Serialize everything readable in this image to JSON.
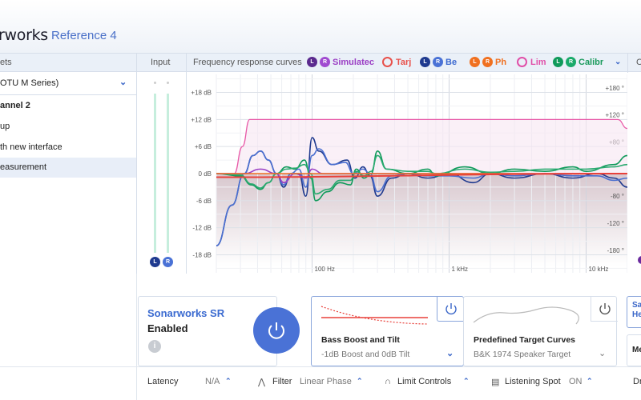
{
  "header": {
    "brand": "rworks",
    "product": "Reference 4"
  },
  "panels": {
    "presets": "ets",
    "input": "Input",
    "frequency": "Frequency response curves",
    "right": "C"
  },
  "sidebar": {
    "device": "OTU M Series)",
    "items": [
      {
        "label": "annel 2",
        "bold": true
      },
      {
        "label": "up"
      },
      {
        "label": "th new interface"
      },
      {
        "label": "easurement",
        "selected": true
      }
    ]
  },
  "input": {
    "left": "L",
    "right": "R"
  },
  "legend": [
    {
      "label": "Simulatec",
      "color": "#9b3fc4",
      "badges": [
        "L",
        "R"
      ],
      "badge_colors": [
        "#5b2a8e",
        "#a04ad0"
      ]
    },
    {
      "label": "Tarj",
      "color": "#e8504a",
      "ring": true
    },
    {
      "label": "Be",
      "color": "#3d6ad0",
      "badges": [
        "L",
        "R"
      ],
      "badge_colors": [
        "#1f3a8f",
        "#4a72d6"
      ]
    },
    {
      "label": "Ph",
      "color": "#f07020",
      "badges": [
        "L",
        "R"
      ],
      "badge_colors": [
        "#f07020",
        "#f07020"
      ]
    },
    {
      "label": "Lim",
      "color": "#e04fa8",
      "ring": true
    },
    {
      "label": "Calibr",
      "color": "#1a9a5c",
      "badges": [
        "L",
        "R"
      ],
      "badge_colors": [
        "#0f9a5a",
        "#1aaa6a"
      ]
    }
  ],
  "chart_data": {
    "type": "line",
    "x_scale": "log",
    "xlim": [
      20,
      20000
    ],
    "ylim": [
      -22,
      22
    ],
    "x_ticks": [
      {
        "v": 100,
        "label": "100 Hz"
      },
      {
        "v": 1000,
        "label": "1 kHz"
      },
      {
        "v": 10000,
        "label": "10 kHz"
      }
    ],
    "y_ticks": [
      {
        "v": 18,
        "label": "+18 dB"
      },
      {
        "v": 12,
        "label": "+12 dB"
      },
      {
        "v": 6,
        "label": "+6 dB"
      },
      {
        "v": 0,
        "label": "0 dB"
      },
      {
        "v": -6,
        "label": "-6 dB"
      },
      {
        "v": -12,
        "label": "-12 dB"
      },
      {
        "v": -18,
        "label": "-18 dB"
      }
    ],
    "phase_ticks": [
      {
        "v": 19,
        "label": "+180 °"
      },
      {
        "v": 13,
        "label": "+120 °"
      },
      {
        "v": 7,
        "label": "+80 °"
      },
      {
        "v": -5,
        "label": "-80 °"
      },
      {
        "v": -11,
        "label": "-120 °"
      },
      {
        "v": -17,
        "label": "-180 °"
      }
    ],
    "series": [
      {
        "id": "limit",
        "color": "#e85aa8",
        "points": [
          [
            20,
            0
          ],
          [
            27,
            0
          ],
          [
            31,
            6
          ],
          [
            35,
            12
          ],
          [
            17000,
            12
          ],
          [
            20000,
            10
          ]
        ]
      },
      {
        "id": "before-L",
        "color": "#1f3a8f",
        "points": [
          [
            20,
            -16
          ],
          [
            26,
            -7
          ],
          [
            32,
            0
          ],
          [
            37,
            4
          ],
          [
            42,
            5
          ],
          [
            48,
            3
          ],
          [
            55,
            0
          ],
          [
            62,
            -3
          ],
          [
            70,
            0
          ],
          [
            80,
            0
          ],
          [
            90,
            -5
          ],
          [
            100,
            8
          ],
          [
            112,
            5
          ],
          [
            140,
            2
          ],
          [
            180,
            3
          ],
          [
            205,
            -1
          ],
          [
            235,
            1.5
          ],
          [
            265,
            -0.5
          ],
          [
            300,
            -5
          ],
          [
            380,
            -1
          ],
          [
            500,
            0
          ],
          [
            700,
            -1
          ],
          [
            1000,
            0
          ],
          [
            1500,
            -2
          ],
          [
            2000,
            0
          ],
          [
            3000,
            -1
          ],
          [
            5000,
            0
          ],
          [
            8000,
            -1
          ],
          [
            12000,
            0
          ],
          [
            16000,
            -1
          ],
          [
            20000,
            -3
          ]
        ]
      },
      {
        "id": "before-R",
        "color": "#4a6fd0",
        "points": [
          [
            20,
            -16
          ],
          [
            26,
            -7
          ],
          [
            32,
            0
          ],
          [
            37,
            4
          ],
          [
            42,
            5
          ],
          [
            48,
            3
          ],
          [
            55,
            0
          ],
          [
            62,
            -2.5
          ],
          [
            70,
            0
          ],
          [
            80,
            1
          ],
          [
            90,
            -3
          ],
          [
            100,
            4
          ],
          [
            112,
            5.5
          ],
          [
            140,
            2
          ],
          [
            175,
            2.5
          ],
          [
            200,
            0
          ],
          [
            235,
            1
          ],
          [
            265,
            0
          ],
          [
            300,
            -4
          ],
          [
            380,
            -0.5
          ],
          [
            500,
            0
          ],
          [
            700,
            -0.5
          ],
          [
            1000,
            -0.5
          ],
          [
            1500,
            -1
          ],
          [
            2000,
            0
          ],
          [
            3000,
            -0.5
          ],
          [
            5000,
            0
          ],
          [
            8000,
            -0.5
          ],
          [
            12000,
            -0.5
          ],
          [
            16000,
            -1.5
          ],
          [
            20000,
            -1
          ]
        ]
      },
      {
        "id": "calibrated-L",
        "color": "#0f9a5a",
        "points": [
          [
            20,
            0
          ],
          [
            30,
            -0.5
          ],
          [
            36,
            -2.5
          ],
          [
            42,
            -3.5
          ],
          [
            48,
            -2
          ],
          [
            55,
            0
          ],
          [
            65,
            1.5
          ],
          [
            75,
            1
          ],
          [
            88,
            3
          ],
          [
            98,
            -1
          ],
          [
            106,
            -6
          ],
          [
            130,
            -4
          ],
          [
            160,
            -2
          ],
          [
            190,
            -2.5
          ],
          [
            210,
            1
          ],
          [
            240,
            -1
          ],
          [
            270,
            0
          ],
          [
            300,
            5
          ],
          [
            350,
            1
          ],
          [
            500,
            0
          ],
          [
            700,
            1
          ],
          [
            800,
            -0.5
          ],
          [
            1300,
            1.5
          ],
          [
            2000,
            0
          ],
          [
            3000,
            1
          ],
          [
            5000,
            0.5
          ],
          [
            8000,
            1.5
          ],
          [
            10000,
            0.5
          ],
          [
            16000,
            2
          ],
          [
            20000,
            4
          ]
        ]
      },
      {
        "id": "calibrated-R",
        "color": "#2aaa70",
        "points": [
          [
            20,
            0
          ],
          [
            30,
            -0.3
          ],
          [
            36,
            -2.3
          ],
          [
            42,
            -3.2
          ],
          [
            48,
            -2
          ],
          [
            55,
            0
          ],
          [
            65,
            1
          ],
          [
            75,
            1.2
          ],
          [
            88,
            2
          ],
          [
            98,
            0
          ],
          [
            106,
            -4.5
          ],
          [
            130,
            -3.5
          ],
          [
            160,
            -1.5
          ],
          [
            190,
            -1.5
          ],
          [
            210,
            0.5
          ],
          [
            240,
            -0.5
          ],
          [
            270,
            0.5
          ],
          [
            300,
            4
          ],
          [
            350,
            1
          ],
          [
            500,
            0.5
          ],
          [
            700,
            0.5
          ],
          [
            800,
            0
          ],
          [
            1300,
            1
          ],
          [
            2000,
            0.3
          ],
          [
            3000,
            0.5
          ],
          [
            5000,
            1
          ],
          [
            8000,
            1
          ],
          [
            10000,
            1
          ],
          [
            16000,
            1.5
          ],
          [
            20000,
            2
          ]
        ]
      },
      {
        "id": "simulated",
        "color": "#9b3fc4",
        "points": [
          [
            20,
            0
          ],
          [
            32,
            0
          ],
          [
            42,
            1
          ],
          [
            55,
            0
          ],
          [
            62,
            -2
          ],
          [
            75,
            0
          ],
          [
            90,
            -1
          ],
          [
            100,
            1
          ],
          [
            120,
            0
          ],
          [
            20000,
            0
          ]
        ]
      },
      {
        "id": "phase",
        "color": "#f07020",
        "points": [
          [
            20,
            0
          ],
          [
            20000,
            0
          ]
        ]
      },
      {
        "id": "target",
        "color": "#e8403a",
        "points": [
          [
            20,
            -0.8
          ],
          [
            20000,
            0
          ]
        ]
      }
    ]
  },
  "sr": {
    "title": "Sonarworks SR",
    "state": "Enabled"
  },
  "bass": {
    "title": "Bass Boost and Tilt",
    "value": "-1dB Boost and 0dB Tilt"
  },
  "target": {
    "title": "Predefined Target Curves",
    "value": "B&K 1974 Speaker Target"
  },
  "rightcards": {
    "a": "Sa\nHe",
    "b": "Me"
  },
  "footer": {
    "latency": "Latency",
    "latency_val": "N/A",
    "filter": "Filter",
    "filter_val": "Linear Phase",
    "limit": "Limit Controls",
    "spot": "Listening Spot",
    "spot_val": "ON",
    "right": "Dr"
  }
}
